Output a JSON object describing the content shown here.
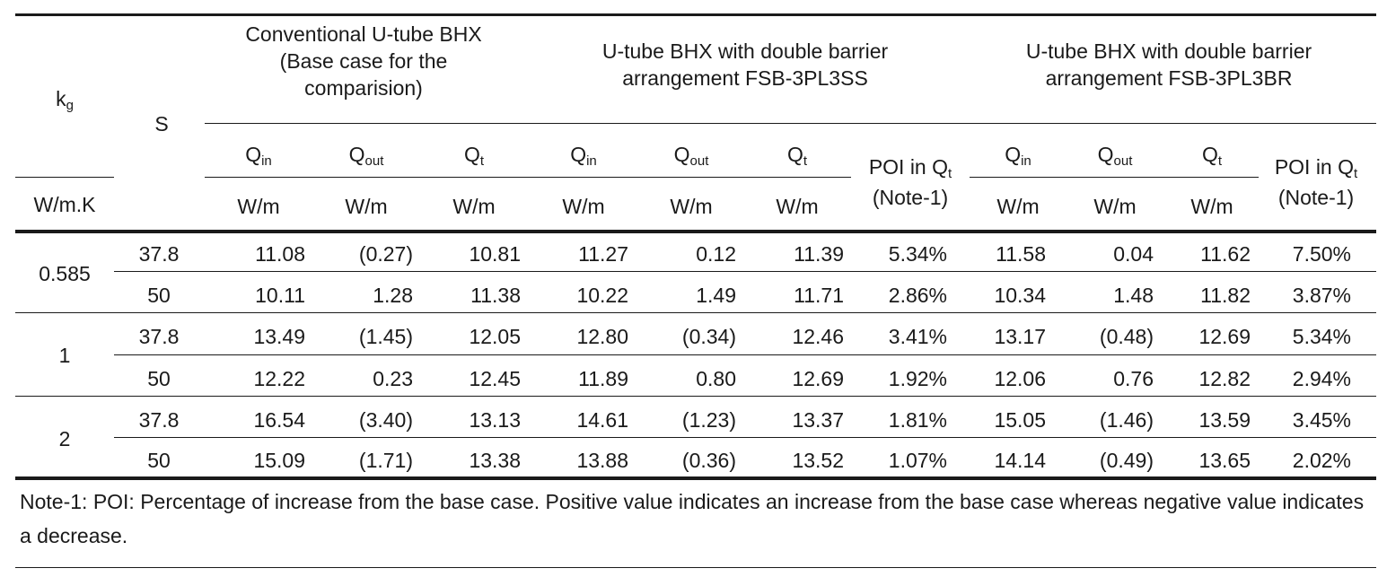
{
  "header": {
    "kg_label": "k",
    "kg_sub": "g",
    "kg_unit": "W/m.K",
    "s_label": "S",
    "groups": [
      {
        "lines": [
          "Conventional U-tube BHX",
          "(Base case for the",
          "comparision)"
        ]
      },
      {
        "lines": [
          "U-tube BHX with double barrier",
          "arrangement FSB-3PL3SS"
        ]
      },
      {
        "lines": [
          "U-tube BHX with double barrier",
          "arrangement FSB-3PL3BR"
        ]
      }
    ],
    "q_label": "Q",
    "sub_in": "in",
    "sub_out": "out",
    "sub_t": "t",
    "unit": "W/m",
    "poi_prefix": "POI in Q",
    "poi_sub": "t",
    "poi_note": "(Note-1)"
  },
  "rows": [
    {
      "kg": "0.585",
      "s": "37.8",
      "v": [
        "11.08",
        "(0.27)",
        "10.81",
        "11.27",
        "0.12",
        "11.39",
        "5.34%",
        "11.58",
        "0.04",
        "11.62",
        "7.50%"
      ]
    },
    {
      "kg": "",
      "s": "50",
      "v": [
        "10.11",
        "1.28",
        "11.38",
        "10.22",
        "1.49",
        "11.71",
        "2.86%",
        "10.34",
        "1.48",
        "11.82",
        "3.87%"
      ]
    },
    {
      "kg": "1",
      "s": "37.8",
      "v": [
        "13.49",
        "(1.45)",
        "12.05",
        "12.80",
        "(0.34)",
        "12.46",
        "3.41%",
        "13.17",
        "(0.48)",
        "12.69",
        "5.34%"
      ]
    },
    {
      "kg": "",
      "s": "50",
      "v": [
        "12.22",
        "0.23",
        "12.45",
        "11.89",
        "0.80",
        "12.69",
        "1.92%",
        "12.06",
        "0.76",
        "12.82",
        "2.94%"
      ]
    },
    {
      "kg": "2",
      "s": "37.8",
      "v": [
        "16.54",
        "(3.40)",
        "13.13",
        "14.61",
        "(1.23)",
        "13.37",
        "1.81%",
        "15.05",
        "(1.46)",
        "13.59",
        "3.45%"
      ]
    },
    {
      "kg": "",
      "s": "50",
      "v": [
        "15.09",
        "(1.71)",
        "13.38",
        "13.88",
        "(0.36)",
        "13.52",
        "1.07%",
        "14.14",
        "(0.49)",
        "13.65",
        "2.02%"
      ]
    }
  ],
  "note": "Note-1: POI: Percentage of increase from the base case. Positive value indicates an increase from the base case whereas negative value indicates a decrease."
}
